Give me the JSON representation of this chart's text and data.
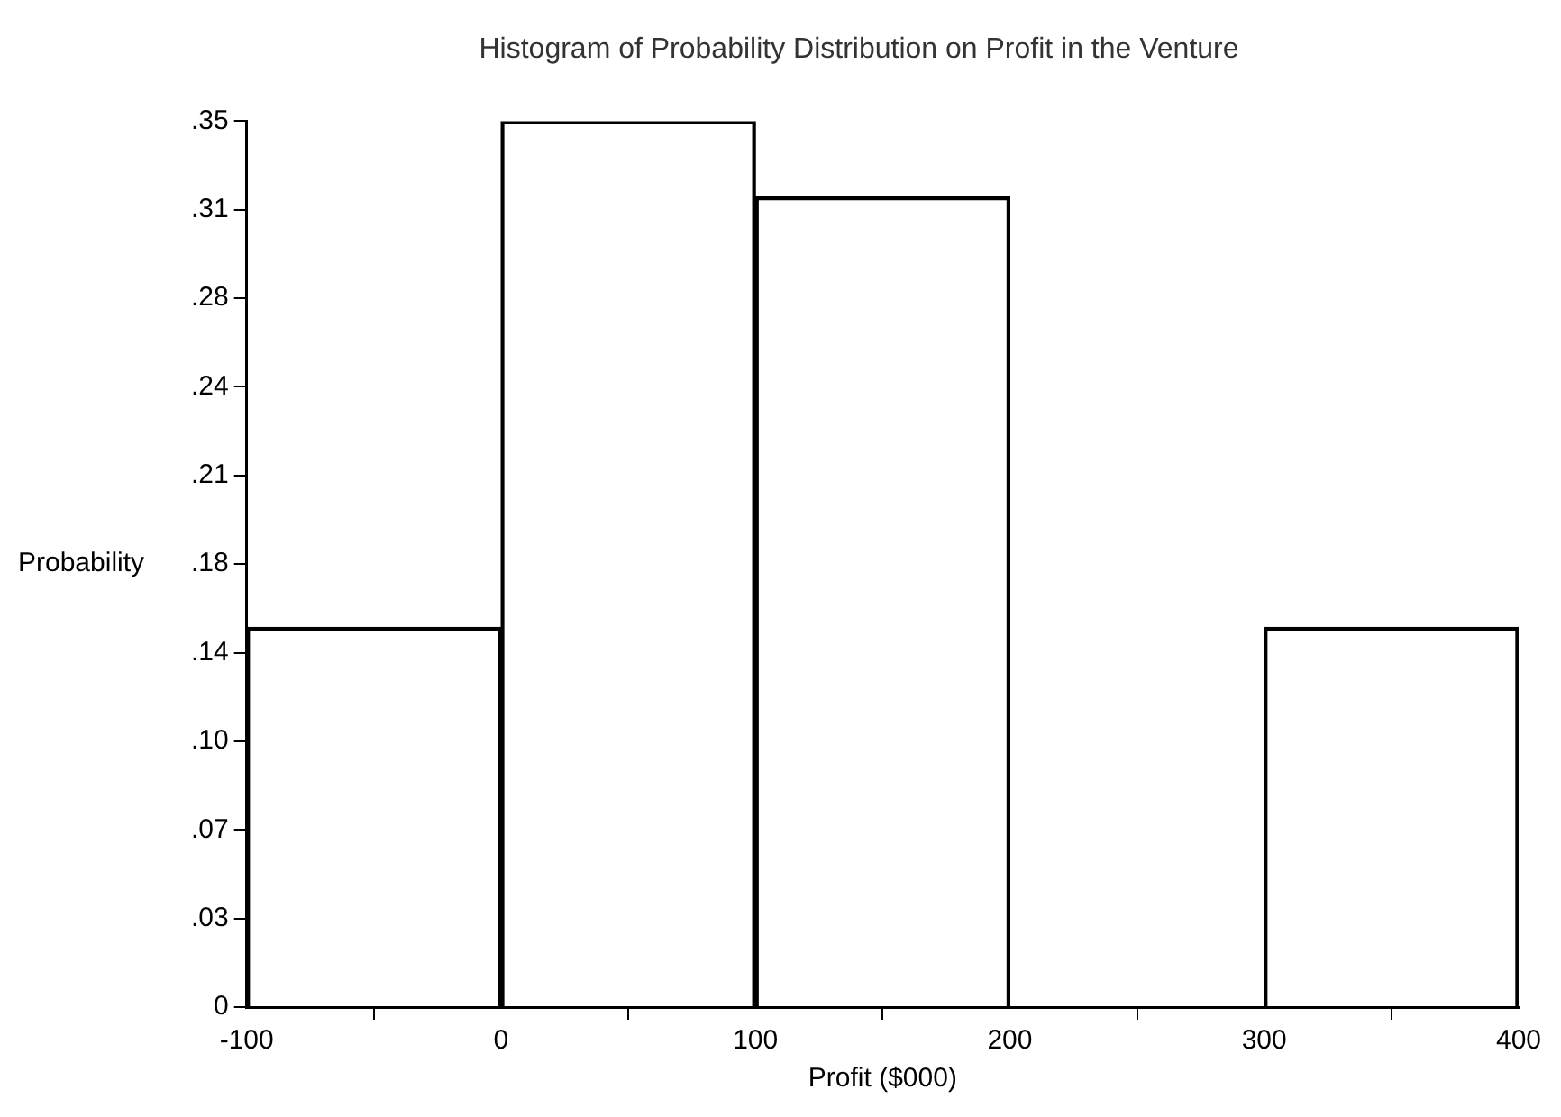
{
  "chart_data": {
    "type": "histogram",
    "title": "Histogram of Probability Distribution on Profit in the Venture",
    "xlabel": "Profit ($000)",
    "ylabel": "Probability",
    "bins": [
      -100,
      0,
      100,
      200,
      300,
      400
    ],
    "values": [
      0.15,
      0.35,
      0.32,
      0,
      0.15
    ],
    "color": "#000000",
    "xlim": [
      -100,
      400
    ],
    "xticks": [
      -100,
      0,
      100,
      200,
      300,
      400
    ],
    "ylim": [
      0,
      0.35
    ],
    "yticks": [
      0,
      {
        "value": 0.035,
        "label": ".03"
      },
      {
        "value": 0.07,
        "label": ".07"
      },
      {
        "value": 0.105,
        "label": ".10"
      },
      {
        "value": 0.14,
        "label": ".14"
      },
      {
        "value": 0.175,
        "label": ".18"
      },
      {
        "value": 0.21,
        "label": ".21"
      },
      {
        "value": 0.245,
        "label": ".24"
      },
      {
        "value": 0.28,
        "label": ".28"
      },
      {
        "value": 0.315,
        "label": ".31"
      },
      {
        "value": 0.35,
        "label": ".35"
      }
    ],
    "grid": false,
    "legend": false
  }
}
